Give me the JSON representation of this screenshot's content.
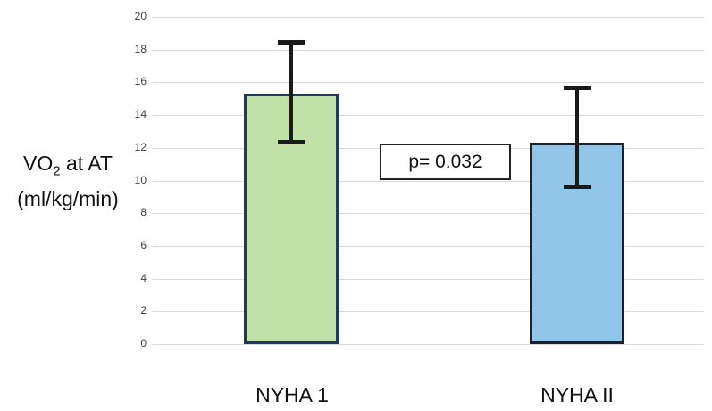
{
  "chart_data": {
    "type": "bar",
    "title": "",
    "categories": [
      "NYHA 1",
      "NYHA II"
    ],
    "values": [
      15.3,
      12.3
    ],
    "error_bars": [
      {
        "upper": 18.6,
        "lower": 12.2
      },
      {
        "upper": 15.8,
        "lower": 9.5
      }
    ],
    "series_colors": [
      {
        "fill": "#c0e2a9",
        "border": "#1f3864"
      },
      {
        "fill": "#92c6e8",
        "border": "#16222f"
      }
    ],
    "ylabel": "VO2 at AT (ml/kg/min)",
    "ylabel_parts": {
      "prefix": "VO",
      "sub": "2",
      "suffix": " at AT",
      "line2": "(ml/kg/min)"
    },
    "xlabel": "",
    "ylim": [
      0,
      20
    ],
    "ytick_step": 2,
    "grid": true,
    "gridline_color": "#d9d9d9",
    "error_bar_color": "#1a1a1a",
    "legend_position": "none",
    "annotation": "p= 0.032"
  }
}
